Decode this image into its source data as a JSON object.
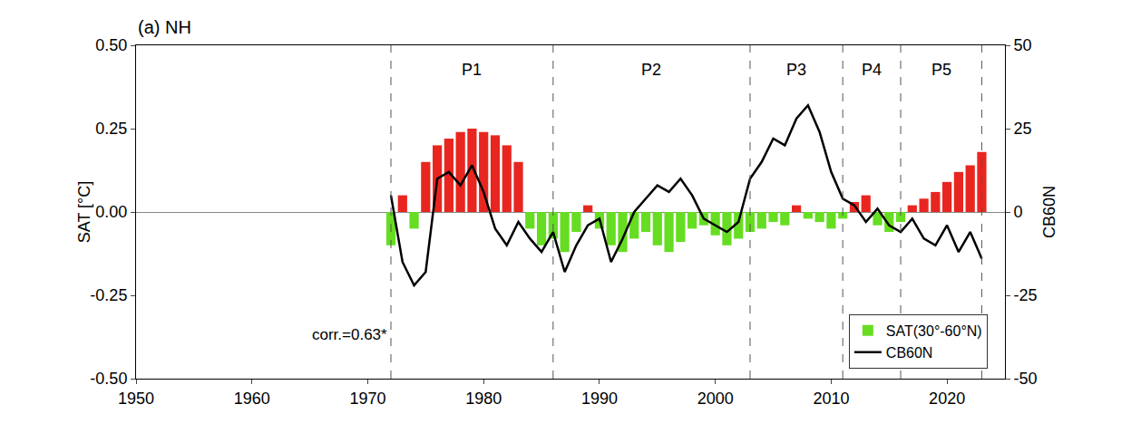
{
  "chart_data": {
    "type": "bar",
    "title": "(a) NH",
    "x": [
      1972,
      1973,
      1974,
      1975,
      1976,
      1977,
      1978,
      1979,
      1980,
      1981,
      1982,
      1983,
      1984,
      1985,
      1986,
      1987,
      1988,
      1989,
      1990,
      1991,
      1992,
      1993,
      1994,
      1995,
      1996,
      1997,
      1998,
      1999,
      2000,
      2001,
      2002,
      2003,
      2004,
      2005,
      2006,
      2007,
      2008,
      2009,
      2010,
      2011,
      2012,
      2013,
      2014,
      2015,
      2016,
      2017,
      2018,
      2019,
      2020,
      2021,
      2022,
      2023
    ],
    "series": [
      {
        "name": "SAT(30°-60°N)",
        "type": "bar",
        "values": [
          -0.1,
          0.05,
          -0.05,
          0.15,
          0.2,
          0.22,
          0.24,
          0.25,
          0.24,
          0.23,
          0.2,
          0.15,
          -0.05,
          -0.1,
          -0.08,
          -0.12,
          -0.06,
          0.02,
          -0.05,
          -0.1,
          -0.12,
          -0.08,
          -0.06,
          -0.1,
          -0.12,
          -0.09,
          -0.05,
          -0.04,
          -0.07,
          -0.1,
          -0.08,
          -0.06,
          -0.05,
          -0.03,
          -0.04,
          0.02,
          -0.02,
          -0.03,
          -0.05,
          -0.02,
          0.03,
          0.05,
          -0.04,
          -0.06,
          -0.03,
          0.02,
          0.04,
          0.06,
          0.09,
          0.12,
          0.14,
          0.18
        ],
        "colors": [
          "#66dd22",
          "#e8261f",
          "#66dd22",
          "#e8261f",
          "#e8261f",
          "#e8261f",
          "#e8261f",
          "#e8261f",
          "#e8261f",
          "#e8261f",
          "#e8261f",
          "#e8261f",
          "#66dd22",
          "#66dd22",
          "#66dd22",
          "#66dd22",
          "#66dd22",
          "#e8261f",
          "#66dd22",
          "#66dd22",
          "#66dd22",
          "#66dd22",
          "#66dd22",
          "#66dd22",
          "#66dd22",
          "#66dd22",
          "#66dd22",
          "#66dd22",
          "#66dd22",
          "#66dd22",
          "#66dd22",
          "#66dd22",
          "#66dd22",
          "#66dd22",
          "#66dd22",
          "#e8261f",
          "#66dd22",
          "#66dd22",
          "#66dd22",
          "#66dd22",
          "#e8261f",
          "#e8261f",
          "#66dd22",
          "#66dd22",
          "#66dd22",
          "#e8261f",
          "#e8261f",
          "#e8261f",
          "#e8261f",
          "#e8261f",
          "#e8261f",
          "#e8261f"
        ]
      },
      {
        "name": "CB60N",
        "type": "line",
        "axis": "y2",
        "color": "#000000",
        "values": [
          5,
          -15,
          -22,
          -18,
          10,
          12,
          8,
          14,
          6,
          -5,
          -10,
          -3,
          -8,
          -12,
          -6,
          -18,
          -10,
          -4,
          -2,
          -15,
          -8,
          0,
          4,
          8,
          6,
          10,
          5,
          -2,
          -4,
          -6,
          -3,
          10,
          15,
          22,
          20,
          28,
          32,
          24,
          12,
          4,
          2,
          -3,
          1,
          -4,
          -6,
          -2,
          -8,
          -10,
          -4,
          -12,
          -6,
          -14
        ]
      }
    ],
    "y_label": "SAT [°C]",
    "y2_label": "CB60N",
    "xlim": [
      1950,
      2025
    ],
    "xticks": [
      1950,
      1960,
      1970,
      1980,
      1990,
      2000,
      2010,
      2020
    ],
    "ylim": [
      -0.5,
      0.5
    ],
    "yticks": [
      {
        "value": -0.5,
        "label": "-0.50"
      },
      {
        "value": -0.25,
        "label": "-0.25"
      },
      {
        "value": 0,
        "label": "0.00"
      },
      {
        "value": 0.25,
        "label": "0.25"
      },
      {
        "value": 0.5,
        "label": "0.50"
      }
    ],
    "y2lim": [
      -50,
      50
    ],
    "y2ticks": [
      -50,
      -25,
      0,
      25,
      50
    ],
    "periods": [
      {
        "label": "P1",
        "start": 1972,
        "end": 1986
      },
      {
        "label": "P2",
        "start": 1986,
        "end": 2003
      },
      {
        "label": "P3",
        "start": 2003,
        "end": 2011
      },
      {
        "label": "P4",
        "start": 2011,
        "end": 2016
      },
      {
        "label": "P5",
        "start": 2016,
        "end": 2023
      }
    ],
    "annotations": [
      "corr.=0.63*"
    ],
    "legend": "lower right",
    "grid": false
  }
}
